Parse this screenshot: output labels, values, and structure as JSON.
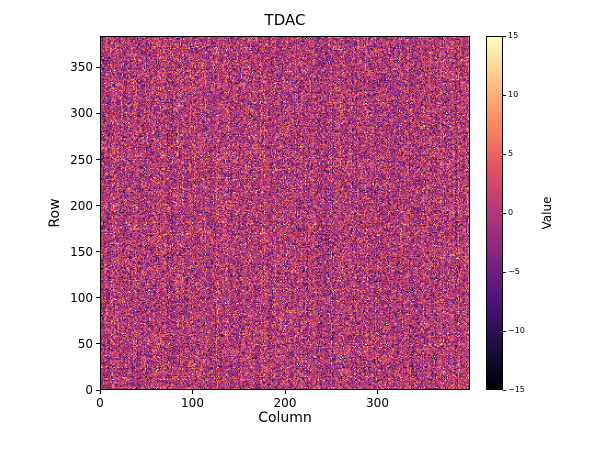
{
  "chart": {
    "title": "TDAC",
    "xlabel": "Column",
    "ylabel": "Row",
    "colorbar": {
      "label": "Value"
    }
  },
  "chart_data": {
    "type": "heatmap",
    "title": "TDAC",
    "xlabel": "Column",
    "ylabel": "Row",
    "colorbar_label": "Value",
    "n_cols": 400,
    "n_rows": 384,
    "x_range": [
      0,
      400
    ],
    "y_range": [
      0,
      384
    ],
    "x_ticks": [
      0,
      100,
      200,
      300
    ],
    "y_ticks": [
      0,
      50,
      100,
      150,
      200,
      250,
      300,
      350
    ],
    "colorbar_ticks": [
      15,
      10,
      5,
      0,
      -5,
      -10,
      -15
    ],
    "value_range": [
      -15,
      15
    ],
    "colormap": "magma",
    "colormap_stops": [
      "#000004",
      "#1c1044",
      "#4f127b",
      "#812581",
      "#b5367a",
      "#e55064",
      "#fb8761",
      "#fec287",
      "#fcfdbf"
    ],
    "data_description": "Per-pixel random Gaussian noise centered near 0 with faint vertical column banding, clipped to the value range",
    "noise": {
      "mean": 0,
      "std": 5,
      "seed": 42,
      "column_banding_std": 0.8
    },
    "grid": false,
    "legend": "colorbar-right"
  }
}
